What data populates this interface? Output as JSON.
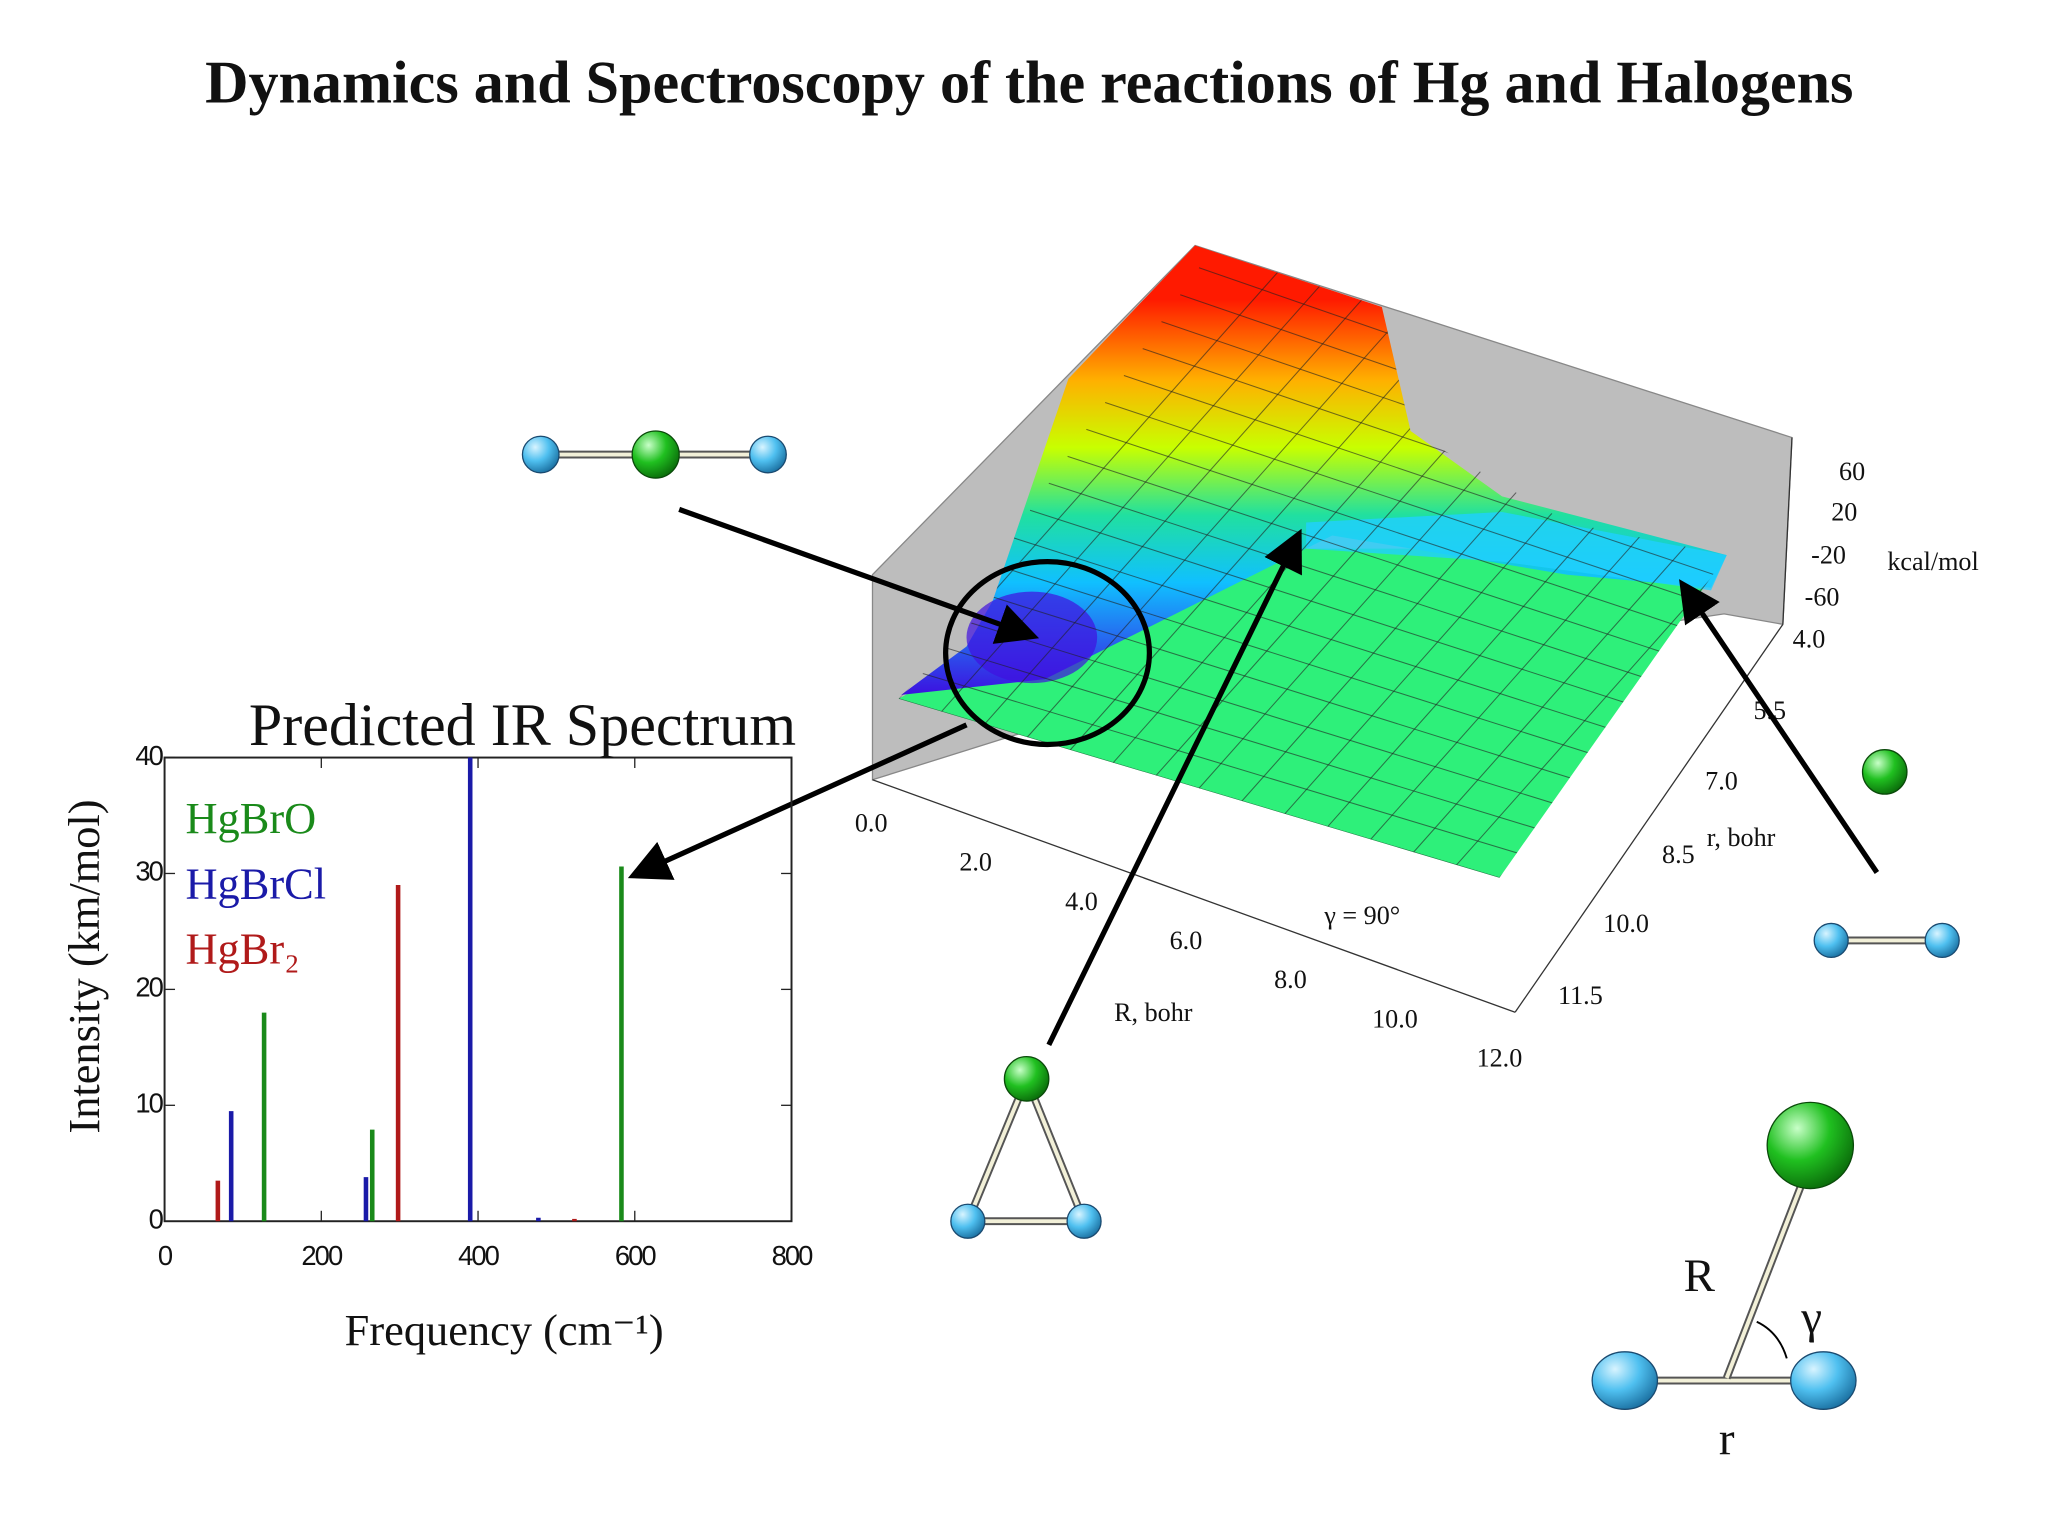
{
  "title": "Dynamics and Spectroscopy of the reactions of Hg and Halogens",
  "chart_data": {
    "type": "bar",
    "title": "Predicted IR Spectrum",
    "x_label": "Frequency (cm⁻¹)",
    "y_label": "Intensity (km/mol)",
    "series": [
      {
        "name": "HgBrO",
        "color": "#1a8a1a",
        "x": [
          127,
          265,
          583
        ],
        "values": [
          18,
          7.9,
          30.6
        ]
      },
      {
        "name": "HgBrCl",
        "color": "#1a1aa8",
        "x": [
          85,
          257,
          390,
          477
        ],
        "values": [
          9.5,
          3.8,
          40,
          0.3
        ]
      },
      {
        "name": "HgBr₂",
        "color": "#b01a1a",
        "x": [
          68,
          298,
          523
        ],
        "values": [
          3.5,
          29,
          0.2
        ]
      }
    ],
    "xlim": [
      0,
      800
    ],
    "xticks": [
      0,
      200,
      400,
      600,
      800
    ],
    "ylim": [
      0,
      40
    ],
    "yticks": [
      0,
      10,
      20,
      30,
      40
    ]
  },
  "surface": {
    "angle_label": "γ = 90°",
    "R_label": "R, bohr",
    "R_ticks": [
      "0.0",
      "2.0",
      "4.0",
      "6.0",
      "8.0",
      "10.0",
      "12.0"
    ],
    "r_label": "r, bohr",
    "r_ticks": [
      "4.0",
      "5.5",
      "7.0",
      "8.5",
      "10.0",
      "11.5"
    ],
    "z_label": "kcal/mol",
    "z_ticks": [
      "60",
      "20",
      "-20",
      "-60"
    ]
  },
  "diagram": {
    "R": "R",
    "gamma": "γ",
    "r": "r"
  }
}
